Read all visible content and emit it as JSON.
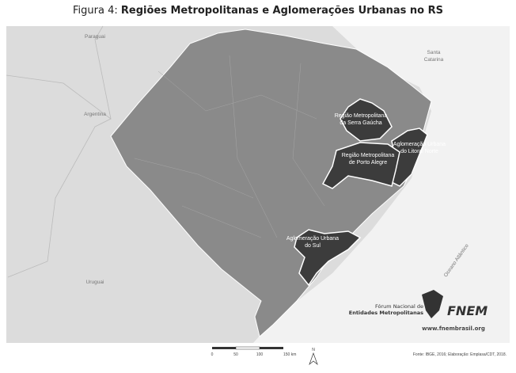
{
  "header": {
    "prefix": "Figura 4: ",
    "title": "Regiões Metropolitanas e Aglomerações Urbanas no RS"
  },
  "neighbors": [
    {
      "label": [
        "Paraguai"
      ]
    },
    {
      "label": [
        "Argentina"
      ]
    },
    {
      "label": [
        "Uruguai"
      ]
    },
    {
      "label": [
        "Santa",
        "Catarina"
      ]
    },
    {
      "label": [
        "Oceano Atlântico"
      ]
    }
  ],
  "regions": [
    {
      "label": [
        "Região Metropolitana",
        "da Serra Gaúcha"
      ]
    },
    {
      "label": [
        "Aglomeração Urbana",
        "do Litoral Norte"
      ]
    },
    {
      "label": [
        "Região Metropolitana",
        "de Porto Alegre"
      ]
    },
    {
      "label": [
        "Aglomeração Urbana",
        "do Sul"
      ]
    }
  ],
  "logo": {
    "lines": [
      "Fórum Nacional de",
      "Entidades Metropolitanas"
    ],
    "brand": "FNEM",
    "url": "www.fnembrasil.org"
  },
  "scale": {
    "labels": [
      "0",
      "50",
      "100",
      "150 km"
    ]
  },
  "north": "N",
  "source": "Fonte: IBGE, 2016; Elaboração: Emplasa/CDT, 2018."
}
